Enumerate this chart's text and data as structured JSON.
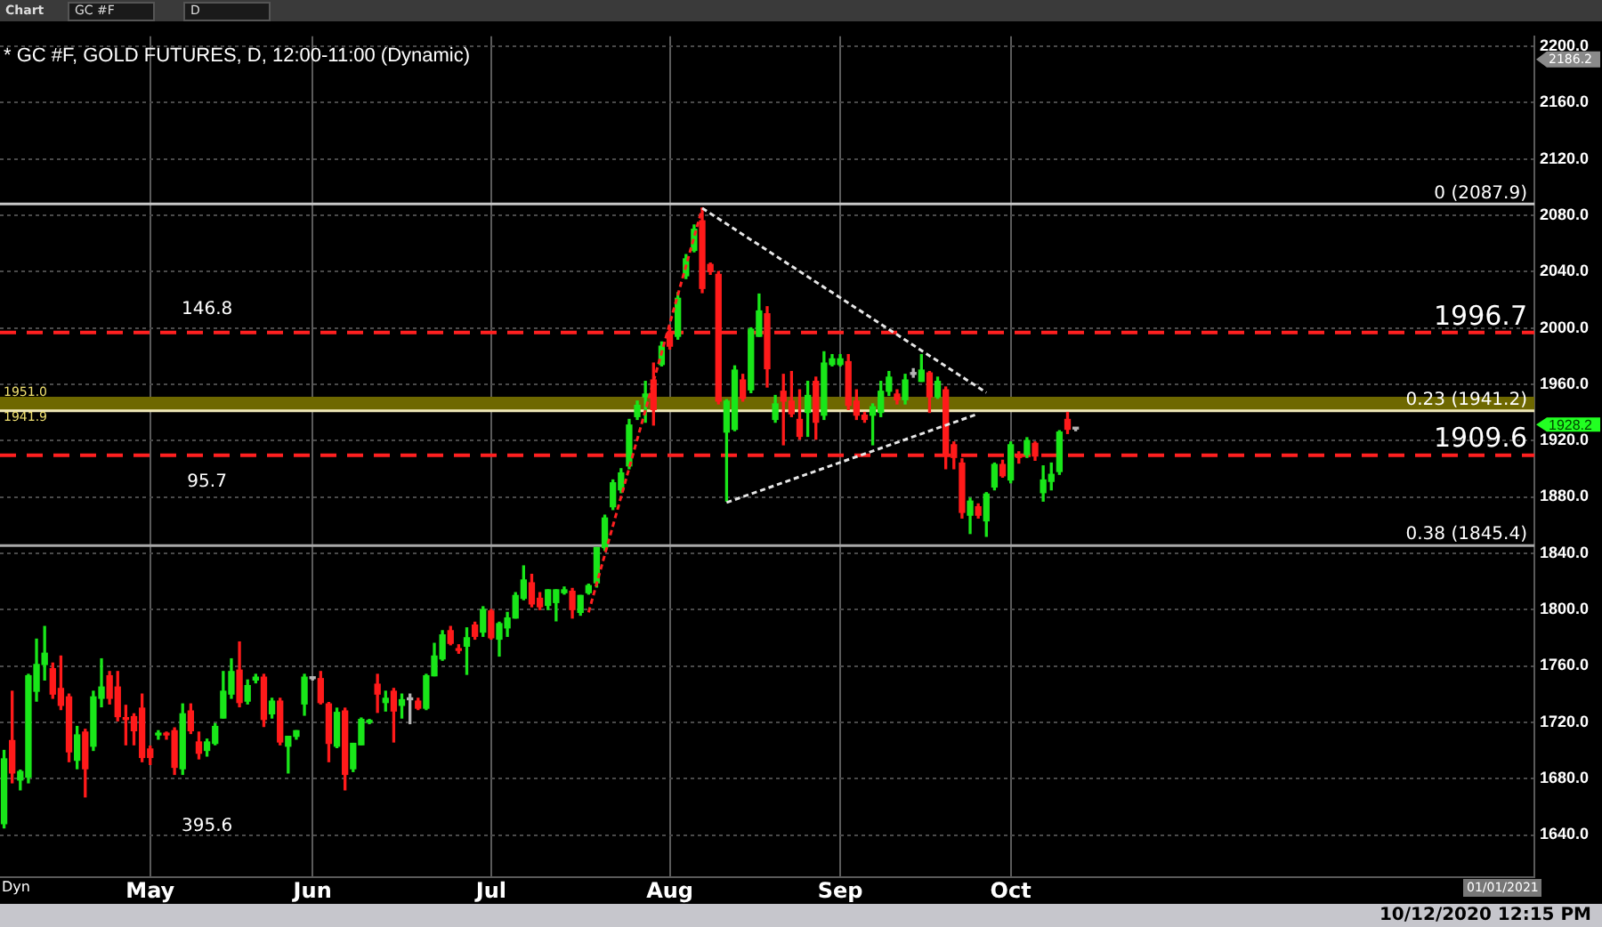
{
  "chart_data": {
    "type": "candlestick",
    "title": "* GC #F, GOLD FUTURES, D, 12:00-11:00 (Dynamic)",
    "categories": [
      null,
      null,
      null,
      null,
      null,
      null,
      null,
      null,
      null,
      null,
      null,
      null,
      null,
      null,
      null,
      null,
      null,
      null,
      "May",
      null,
      null,
      null,
      null,
      null,
      null,
      null,
      null,
      null,
      null,
      null,
      null,
      null,
      null,
      null,
      null,
      null,
      null,
      null,
      "Jun",
      null,
      null,
      null,
      null,
      null,
      null,
      null,
      null,
      null,
      null,
      null,
      null,
      null,
      null,
      null,
      null,
      null,
      null,
      null,
      null,
      null,
      "Jul",
      null,
      null,
      null,
      null,
      null,
      null,
      null,
      null,
      null,
      null,
      null,
      null,
      null,
      null,
      null,
      null,
      null,
      null,
      null,
      null,
      null,
      "Aug",
      null,
      null,
      null,
      null,
      null,
      null,
      null,
      null,
      null,
      null,
      null,
      null,
      null,
      null,
      null,
      null,
      null,
      null,
      null,
      null,
      "Sep",
      null,
      null,
      null,
      null,
      null,
      null,
      null,
      null,
      null,
      null,
      null,
      null,
      null,
      null,
      null,
      null,
      null,
      null,
      null,
      null,
      "Oct",
      null,
      null,
      null,
      null,
      null,
      null,
      null,
      null,
      null,
      null,
      null,
      null,
      null,
      null,
      null,
      null,
      null,
      null,
      null,
      null,
      null,
      null,
      null,
      null,
      null,
      null,
      null,
      null,
      null,
      null,
      null,
      null,
      null,
      null,
      null,
      null,
      null,
      null,
      null,
      null,
      null,
      null,
      null,
      null,
      null,
      null,
      null,
      null,
      null,
      null,
      null,
      null,
      null,
      null,
      null,
      null,
      null,
      null,
      null,
      null,
      null,
      null,
      null,
      null
    ],
    "ohlc": [
      [
        1648,
        1700,
        1645,
        1694
      ],
      [
        1707,
        1742,
        1677,
        1684
      ],
      [
        1679,
        1686,
        1672,
        1685
      ],
      [
        1681,
        1754,
        1677,
        1753
      ],
      [
        1742,
        1779,
        1735,
        1761
      ],
      [
        1761,
        1788,
        1750,
        1769
      ],
      [
        1758,
        1762,
        1737,
        1740
      ],
      [
        1744,
        1767,
        1729,
        1732
      ],
      [
        1738,
        1740,
        1692,
        1699
      ],
      [
        1693,
        1717,
        1687,
        1711
      ],
      [
        1713,
        1715,
        1667,
        1687
      ],
      [
        1703,
        1742,
        1700,
        1738
      ],
      [
        1737,
        1765,
        1731,
        1745
      ],
      [
        1753,
        1756,
        1733,
        1737
      ],
      [
        1745,
        1756,
        1721,
        1724
      ],
      [
        1723,
        1732,
        1704,
        1722
      ],
      [
        1724,
        1726,
        1704,
        1714
      ],
      [
        1730,
        1740,
        1692,
        1695
      ],
      [
        1701,
        1703,
        1690,
        1695
      ],
      [
        1711,
        1714,
        1708,
        1712
      ],
      [
        1712,
        1713,
        1708,
        1711
      ],
      [
        1714,
        1716,
        1683,
        1688
      ],
      [
        1687,
        1733,
        1683,
        1726
      ],
      [
        1728,
        1733,
        1712,
        1714
      ],
      [
        1706,
        1713,
        1694,
        1698
      ],
      [
        1700,
        1708,
        1696,
        1706
      ],
      [
        1705,
        1719,
        1704,
        1717
      ],
      [
        1723,
        1756,
        1723,
        1742
      ],
      [
        1740,
        1765,
        1737,
        1756
      ],
      [
        1757,
        1777,
        1731,
        1734
      ],
      [
        1735,
        1750,
        1733,
        1746
      ],
      [
        1750,
        1754,
        1748,
        1752
      ],
      [
        1752,
        1754,
        1717,
        1722
      ],
      [
        1726,
        1737,
        1723,
        1735
      ],
      [
        1735,
        1737,
        1704,
        1706
      ],
      [
        1703,
        1710,
        1684,
        1710
      ],
      [
        1710,
        1714,
        1708,
        1714
      ],
      [
        1733,
        1754,
        1725,
        1752
      ],
      [
        1751,
        1752,
        1750,
        1751
      ],
      [
        1751,
        1756,
        1733,
        1734
      ],
      [
        1733,
        1734,
        1692,
        1705
      ],
      [
        1703,
        1730,
        1702,
        1727
      ],
      [
        1728,
        1730,
        1672,
        1683
      ],
      [
        1687,
        1705,
        1685,
        1705
      ],
      [
        1704,
        1723,
        1704,
        1722
      ],
      [
        1720,
        1722,
        1719,
        1721
      ],
      [
        1747,
        1754,
        1727,
        1740
      ],
      [
        1734,
        1742,
        1728,
        1737
      ],
      [
        1742,
        1744,
        1706,
        1728
      ],
      [
        1732,
        1740,
        1723,
        1736
      ],
      [
        1736,
        1740,
        1719,
        1736
      ],
      [
        1735,
        1737,
        1729,
        1730
      ],
      [
        1730,
        1754,
        1729,
        1753
      ],
      [
        1753,
        1776,
        1753,
        1767
      ],
      [
        1765,
        1785,
        1764,
        1782
      ],
      [
        1785,
        1788,
        1775,
        1776
      ],
      [
        1772,
        1775,
        1769,
        1771
      ],
      [
        1774,
        1787,
        1754,
        1780
      ],
      [
        1789,
        1791,
        1779,
        1781
      ],
      [
        1784,
        1802,
        1781,
        1800
      ],
      [
        1799,
        1800,
        1779,
        1780
      ],
      [
        1779,
        1791,
        1767,
        1790
      ],
      [
        1787,
        1798,
        1781,
        1794
      ],
      [
        1794,
        1812,
        1794,
        1810
      ],
      [
        1808,
        1831,
        1807,
        1821
      ],
      [
        1819,
        1825,
        1802,
        1804
      ],
      [
        1808,
        1812,
        1800,
        1802
      ],
      [
        1803,
        1814,
        1800,
        1814
      ],
      [
        1805,
        1814,
        1792,
        1814
      ],
      [
        1812,
        1816,
        1811,
        1814
      ],
      [
        1813,
        1815,
        1794,
        1800
      ],
      [
        1798,
        1810,
        1796,
        1810
      ],
      [
        1812,
        1818,
        1811,
        1817
      ],
      [
        1819,
        1844,
        1816,
        1844
      ],
      [
        1844,
        1867,
        1842,
        1865
      ],
      [
        1873,
        1892,
        1871,
        1890
      ],
      [
        1885,
        1900,
        1883,
        1897
      ],
      [
        1902,
        1935,
        1900,
        1931
      ],
      [
        1937,
        1948,
        1935,
        1945
      ],
      [
        1951,
        1962,
        1933,
        1953
      ],
      [
        1963,
        1975,
        1931,
        1942
      ],
      [
        1974,
        1990,
        1973,
        1987
      ],
      [
        1997,
        2000,
        1985,
        1987
      ],
      [
        1994,
        2025,
        1992,
        2021
      ],
      [
        2037,
        2052,
        2035,
        2049
      ],
      [
        2055,
        2073,
        2054,
        2070
      ],
      [
        2076,
        2085,
        2025,
        2028
      ],
      [
        2045,
        2046,
        2038,
        2040
      ],
      [
        2038,
        2040,
        1946,
        1948
      ],
      [
        1926,
        1949,
        1877,
        1948
      ],
      [
        1928,
        1973,
        1927,
        1970
      ],
      [
        1963,
        1967,
        1948,
        1950
      ],
      [
        1956,
        2000,
        1954,
        1999
      ],
      [
        1994,
        2024,
        1994,
        2012
      ],
      [
        2010,
        2015,
        1958,
        1971
      ],
      [
        1935,
        1952,
        1933,
        1946
      ],
      [
        1955,
        1967,
        1917,
        1948
      ],
      [
        1948,
        1969,
        1937,
        1939
      ],
      [
        1935,
        1956,
        1921,
        1923
      ],
      [
        1940,
        1962,
        1923,
        1952
      ],
      [
        1962,
        1965,
        1921,
        1933
      ],
      [
        1938,
        1983,
        1935,
        1975
      ],
      [
        1974,
        1981,
        1973,
        1978
      ],
      [
        1974,
        1981,
        1973,
        1978
      ],
      [
        1976,
        1981,
        1942,
        1945
      ],
      [
        1948,
        1956,
        1935,
        1938
      ],
      [
        1938,
        1940,
        1933,
        1935
      ],
      [
        1938,
        1946,
        1917,
        1944
      ],
      [
        1940,
        1962,
        1937,
        1955
      ],
      [
        1955,
        1969,
        1952,
        1965
      ],
      [
        1953,
        1956,
        1946,
        1949
      ],
      [
        1949,
        1967,
        1946,
        1963
      ],
      [
        1967,
        1971,
        1965,
        1967
      ],
      [
        1962,
        1981,
        1962,
        1970
      ],
      [
        1968,
        1969,
        1940,
        1951
      ],
      [
        1951,
        1965,
        1950,
        1962
      ],
      [
        1956,
        1958,
        1900,
        1909
      ],
      [
        1917,
        1919,
        1900,
        1908
      ],
      [
        1904,
        1907,
        1865,
        1869
      ],
      [
        1867,
        1879,
        1854,
        1877
      ],
      [
        1873,
        1875,
        1865,
        1867
      ],
      [
        1863,
        1883,
        1852,
        1882
      ],
      [
        1887,
        1904,
        1885,
        1903
      ],
      [
        1903,
        1906,
        1894,
        1895
      ],
      [
        1892,
        1919,
        1890,
        1917
      ],
      [
        1910,
        1912,
        1904,
        1908
      ],
      [
        1910,
        1922,
        1908,
        1920
      ],
      [
        1918,
        1919,
        1906,
        1909
      ],
      [
        1883,
        1902,
        1877,
        1892
      ],
      [
        1891,
        1904,
        1885,
        1896
      ],
      [
        1898,
        1927,
        1896,
        1926
      ],
      [
        1935,
        1940,
        1925,
        1928
      ],
      [
        1928.2,
        1929,
        1927,
        1928.2
      ],
      null,
      null,
      null,
      null,
      null,
      null,
      null,
      null,
      null,
      null,
      null,
      null,
      null,
      null,
      null,
      null,
      null,
      null,
      null,
      null,
      null,
      null,
      null,
      null,
      null,
      null,
      null,
      null,
      null,
      null,
      null,
      null,
      null,
      null,
      null,
      null,
      null,
      null,
      null,
      null,
      null,
      null,
      null,
      null,
      null,
      null,
      null,
      null,
      null,
      null,
      null,
      null,
      null,
      null,
      null,
      null
    ],
    "series": [
      {
        "type": "line",
        "color": "#e6e6e6",
        "line_style": "dashed",
        "values": [
          null,
          null,
          null,
          null,
          null,
          null,
          null,
          null,
          null,
          null,
          null,
          null,
          null,
          null,
          null,
          null,
          null,
          null,
          null,
          null,
          null,
          null,
          null,
          null,
          null,
          null,
          null,
          null,
          null,
          null,
          null,
          null,
          null,
          null,
          null,
          null,
          null,
          null,
          null,
          null,
          null,
          null,
          null,
          null,
          null,
          null,
          null,
          null,
          null,
          null,
          null,
          null,
          null,
          null,
          null,
          null,
          null,
          null,
          null,
          null,
          null,
          null,
          null,
          null,
          null,
          null,
          null,
          null,
          null,
          null,
          null,
          null,
          null,
          null,
          null,
          null,
          null,
          null,
          null,
          null,
          null,
          null,
          null,
          null,
          null,
          null,
          2085,
          null,
          null,
          null,
          null,
          null,
          null,
          null,
          null,
          null,
          null,
          null,
          null,
          null,
          null,
          null,
          null,
          null,
          null,
          null,
          null,
          null,
          null,
          null,
          null,
          null,
          null,
          null,
          null,
          null,
          null,
          null,
          null,
          null,
          null,
          1954,
          null,
          null,
          null,
          null,
          null,
          null,
          null,
          null,
          null,
          null,
          null,
          null,
          null,
          null,
          null,
          null,
          null,
          null,
          null,
          null,
          null,
          null,
          null,
          null,
          null,
          null,
          null,
          null,
          null,
          null,
          null,
          null,
          null,
          null,
          null,
          null,
          null,
          null,
          null,
          null,
          null,
          null,
          null,
          null,
          null,
          null,
          null,
          null,
          null,
          null,
          null,
          null,
          null,
          null,
          null,
          null,
          null,
          null,
          null,
          null,
          null,
          null,
          null,
          null,
          null,
          null,
          null
        ]
      },
      {
        "type": "line",
        "color": "#e6e6e6",
        "line_style": "dashed",
        "values": [
          null,
          null,
          null,
          null,
          null,
          null,
          null,
          null,
          null,
          null,
          null,
          null,
          null,
          null,
          null,
          null,
          null,
          null,
          null,
          null,
          null,
          null,
          null,
          null,
          null,
          null,
          null,
          null,
          null,
          null,
          null,
          null,
          null,
          null,
          null,
          null,
          null,
          null,
          null,
          null,
          null,
          null,
          null,
          null,
          null,
          null,
          null,
          null,
          null,
          null,
          null,
          null,
          null,
          null,
          null,
          null,
          null,
          null,
          null,
          null,
          null,
          null,
          null,
          null,
          null,
          null,
          null,
          null,
          null,
          null,
          null,
          null,
          null,
          null,
          null,
          null,
          null,
          null,
          null,
          null,
          null,
          null,
          null,
          null,
          null,
          null,
          null,
          null,
          null,
          1876,
          null,
          null,
          null,
          null,
          null,
          null,
          null,
          null,
          null,
          null,
          null,
          null,
          null,
          null,
          null,
          null,
          null,
          null,
          null,
          null,
          null,
          null,
          null,
          null,
          null,
          null,
          null,
          null,
          null,
          null,
          1939,
          null,
          null,
          null,
          null,
          null,
          null,
          null,
          null,
          null,
          null,
          null,
          null,
          null,
          null,
          null,
          null,
          null,
          null,
          null,
          null,
          null,
          null,
          null,
          null,
          null,
          null,
          null,
          null,
          null,
          null,
          null,
          null,
          null,
          null,
          null,
          null,
          null,
          null,
          null,
          null,
          null,
          null,
          null,
          null,
          null,
          null,
          null,
          null,
          null,
          null,
          null,
          null,
          null,
          null,
          null,
          null,
          null,
          null,
          null,
          null,
          null,
          null,
          null,
          null,
          null,
          null,
          null,
          null
        ]
      },
      {
        "type": "line",
        "color": "#ff2020",
        "line_style": "dashed",
        "values": [
          null,
          null,
          null,
          null,
          null,
          null,
          null,
          null,
          null,
          null,
          null,
          null,
          null,
          null,
          null,
          null,
          null,
          null,
          null,
          null,
          null,
          null,
          null,
          null,
          null,
          null,
          null,
          null,
          null,
          null,
          null,
          null,
          null,
          null,
          null,
          null,
          null,
          null,
          null,
          null,
          null,
          null,
          null,
          null,
          null,
          null,
          null,
          null,
          null,
          null,
          null,
          null,
          null,
          null,
          null,
          null,
          null,
          null,
          null,
          null,
          null,
          null,
          null,
          null,
          null,
          null,
          null,
          null,
          null,
          null,
          null,
          null,
          1798,
          null,
          null,
          null,
          null,
          null,
          null,
          null,
          null,
          null,
          null,
          null,
          null,
          null,
          2085,
          null,
          null,
          null,
          null,
          null,
          null,
          null,
          null,
          null,
          null,
          null,
          null,
          null,
          null,
          null,
          null,
          null,
          null,
          null,
          null,
          null,
          null,
          null,
          null,
          null,
          null,
          null,
          null,
          null,
          null,
          null,
          null,
          null,
          null,
          null,
          null,
          null,
          null,
          null,
          null,
          null,
          null,
          null,
          null,
          null,
          null,
          null,
          null,
          null,
          null,
          null,
          null,
          null,
          null,
          null,
          null,
          null,
          null,
          null,
          null,
          null,
          null,
          null,
          null,
          null,
          null,
          null,
          null,
          null,
          null,
          null,
          null,
          null,
          null,
          null,
          null,
          null,
          null,
          null,
          null,
          null,
          null,
          null,
          null,
          null,
          null,
          null,
          null,
          null,
          null,
          null,
          null,
          null,
          null,
          null,
          null,
          null,
          null,
          null,
          null,
          null,
          null
        ]
      }
    ],
    "ylim": [
      1610,
      2207
    ],
    "yticks": [
      {
        "value": 1640,
        "label": "1640.0"
      },
      {
        "value": 1680,
        "label": "1680.0"
      },
      {
        "value": 1720,
        "label": "1720.0"
      },
      {
        "value": 1760,
        "label": "1760.0"
      },
      {
        "value": 1800,
        "label": "1800.0"
      },
      {
        "value": 1840,
        "label": "1840.0"
      },
      {
        "value": 1880,
        "label": "1880.0"
      },
      {
        "value": 1920,
        "label": "1920.0"
      },
      {
        "value": 1960,
        "label": "1960.0"
      },
      {
        "value": 2000,
        "label": "2000.0"
      },
      {
        "value": 2040,
        "label": "2040.0"
      },
      {
        "value": 2080,
        "label": "2080.0"
      },
      {
        "value": 2120,
        "label": "2120.0"
      },
      {
        "value": 2160,
        "label": "2160.0"
      },
      {
        "value": 2200,
        "label": "2200.0"
      }
    ],
    "grid": true,
    "ref_lines": [
      {
        "axis": "y",
        "value": 2087.9,
        "label": "0 (2087.9)",
        "color": "#c8c8c8",
        "line_style": "solid"
      },
      {
        "axis": "y",
        "value": 1996.7,
        "label": "1996.7",
        "color": "#ff2020",
        "line_style": "dashed"
      },
      {
        "axis": "y",
        "value": 1941.2,
        "label": "0.23 (1941.2)",
        "color": "#f0e8b8",
        "line_style": "solid"
      },
      {
        "axis": "y",
        "value": 1909.6,
        "label": "1909.6",
        "color": "#ff2020",
        "line_style": "dashed"
      },
      {
        "axis": "y",
        "value": 1845.4,
        "label": "0.38 (1845.4)",
        "color": "#a8a8a8",
        "line_style": "solid"
      }
    ],
    "bands": [
      {
        "axis": "y",
        "from": 1941.2,
        "to": 1951.0,
        "label": "1951.0",
        "color": "#6e6800"
      }
    ],
    "annotations": [
      "146.8",
      "95.7",
      "395.6",
      {
        "text": "1941.9",
        "y": 1941.9
      },
      "1928.2",
      "2186.2",
      "01/01/2021",
      "10/12/2020 12:15 PM",
      "Chart",
      "GC #F",
      "D",
      "Dyn"
    ]
  }
}
